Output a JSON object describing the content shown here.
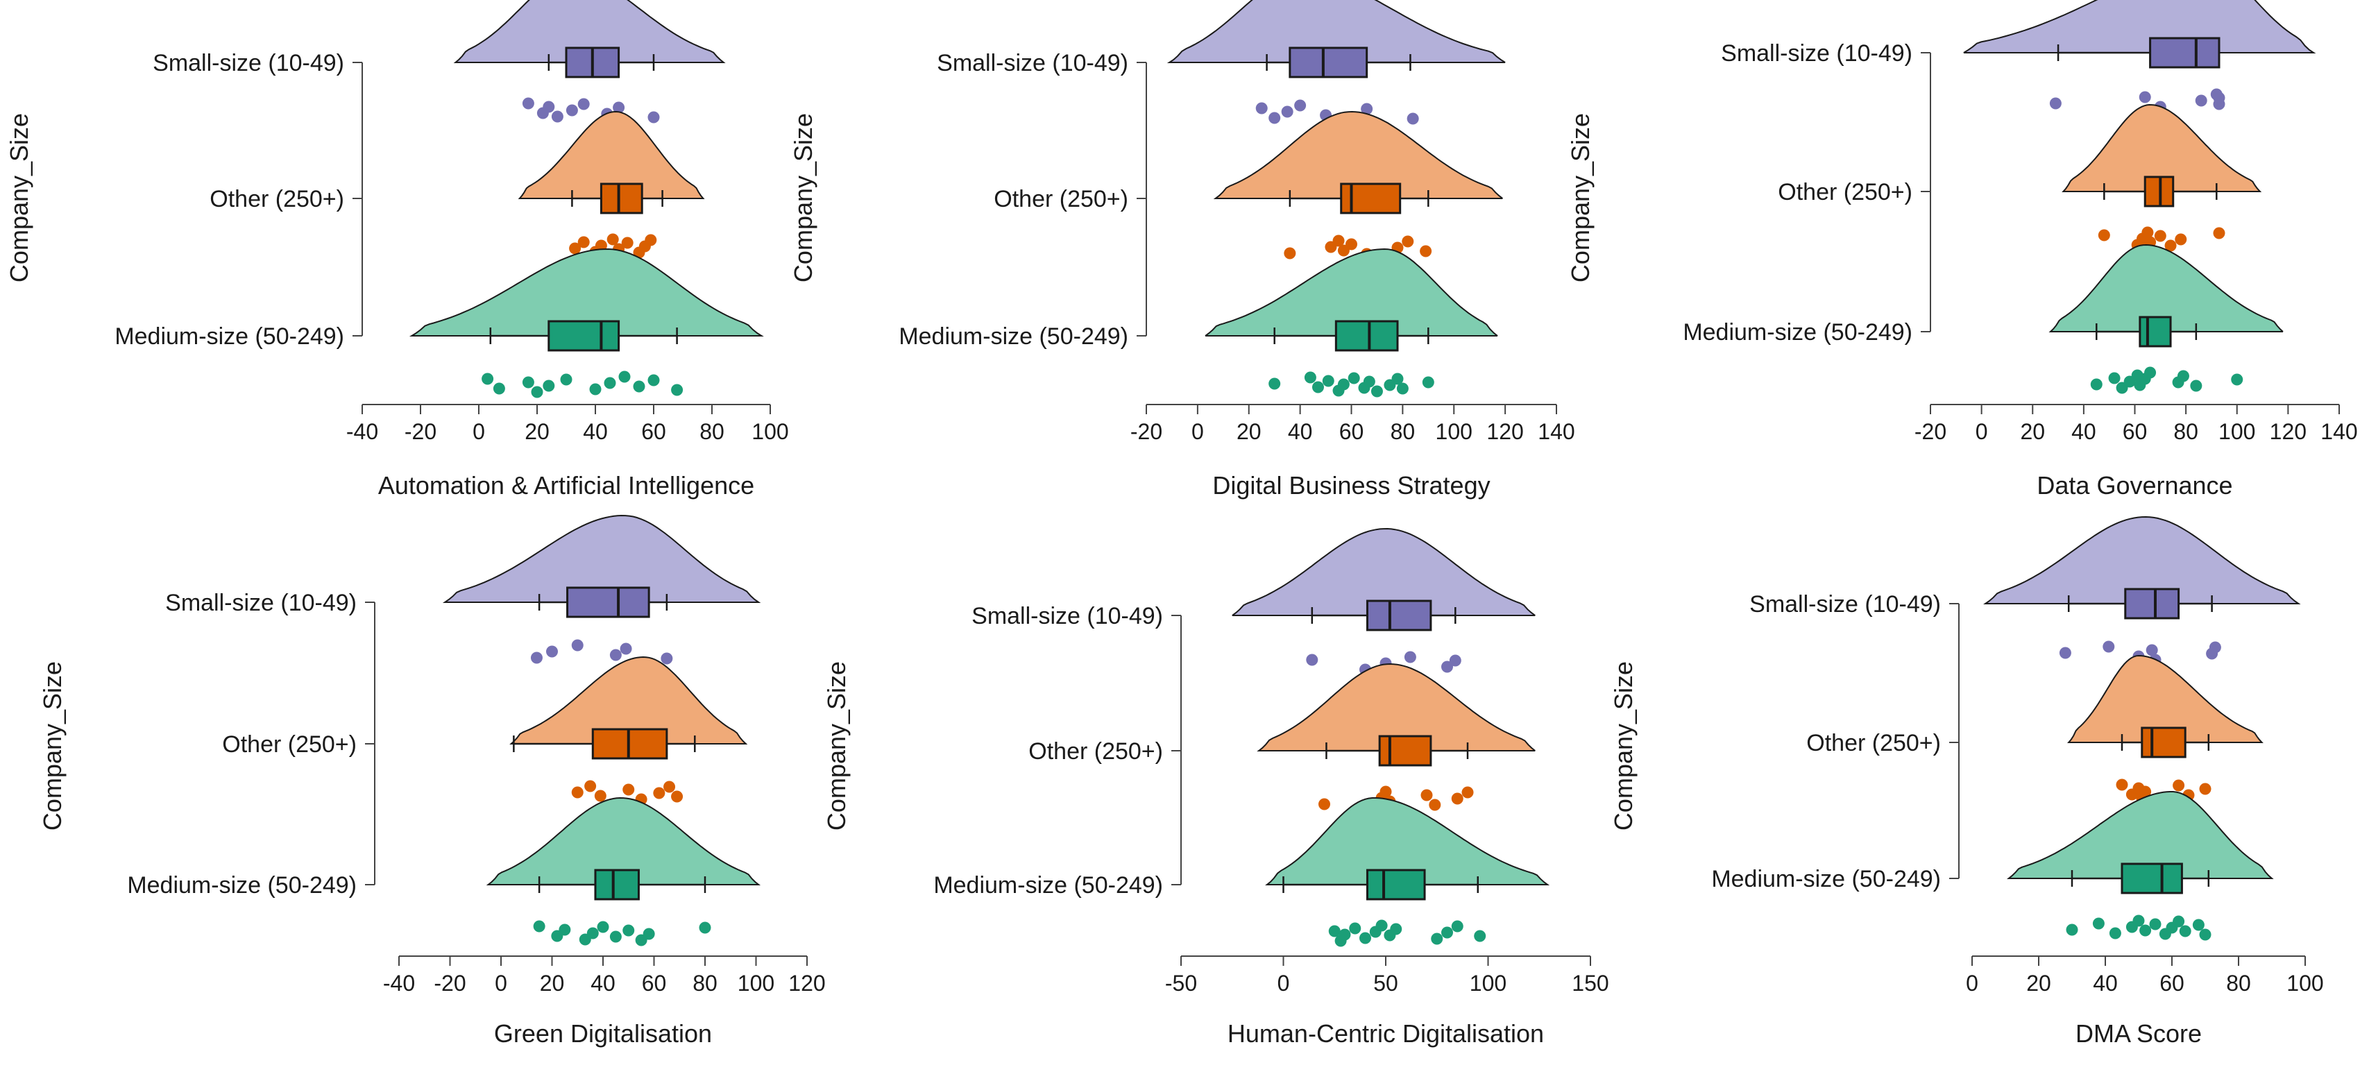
{
  "colors": {
    "small": "#7570b3",
    "other": "#d95f02",
    "medium": "#1b9e77",
    "small_fill": "#b3b0d9",
    "other_fill": "#f0aa78",
    "medium_fill": "#7fcdb0"
  },
  "chart_data": [
    {
      "type": "raincloud",
      "title": "",
      "xlabel": "Automation & Artificial Intelligence",
      "ylabel": "Company_Size",
      "xlim": [
        -40,
        100
      ],
      "xticks": [
        -40,
        -20,
        0,
        20,
        40,
        60,
        80,
        100
      ],
      "groups": [
        {
          "name": "Small-size (10-49)",
          "key": "small",
          "density_range": [
            -8,
            84
          ],
          "density_peak": 32,
          "box": {
            "whisker_low": 24,
            "q1": 30,
            "median": 39,
            "q3": 48,
            "whisker_high": 60
          },
          "points": [
            17,
            22,
            24,
            27,
            32,
            36,
            44,
            48,
            60
          ]
        },
        {
          "name": "Other (250+)",
          "key": "other",
          "density_range": [
            14,
            77
          ],
          "density_peak": 47,
          "box": {
            "whisker_low": 32,
            "q1": 42,
            "median": 48,
            "q3": 56,
            "whisker_high": 63
          },
          "points": [
            33,
            36,
            40,
            42,
            46,
            48,
            51,
            55,
            57,
            59
          ]
        },
        {
          "name": "Medium-size (50-249)",
          "key": "medium",
          "density_range": [
            -23,
            97
          ],
          "density_peak": 44,
          "box": {
            "whisker_low": 4,
            "q1": 24,
            "median": 42,
            "q3": 48,
            "whisker_high": 68
          },
          "points": [
            3,
            7,
            17,
            20,
            24,
            30,
            40,
            45,
            50,
            55,
            60,
            68
          ]
        }
      ]
    },
    {
      "type": "raincloud",
      "title": "",
      "xlabel": "Digital Business Strategy",
      "ylabel": "Company_Size",
      "xlim": [
        -20,
        140
      ],
      "xticks": [
        -20,
        0,
        20,
        40,
        60,
        80,
        100,
        120,
        140
      ],
      "groups": [
        {
          "name": "Small-size (10-49)",
          "key": "small",
          "density_range": [
            -11,
            120
          ],
          "density_peak": 40,
          "box": {
            "whisker_low": 27,
            "q1": 36,
            "median": 49,
            "q3": 66,
            "whisker_high": 83
          },
          "points": [
            25,
            30,
            35,
            40,
            50,
            66,
            84
          ]
        },
        {
          "name": "Other (250+)",
          "key": "other",
          "density_range": [
            7,
            119
          ],
          "density_peak": 60,
          "box": {
            "whisker_low": 36,
            "q1": 56,
            "median": 60,
            "q3": 79,
            "whisker_high": 90
          },
          "points": [
            36,
            52,
            55,
            57,
            60,
            66,
            78,
            82,
            89
          ]
        },
        {
          "name": "Medium-size (50-249)",
          "key": "medium",
          "density_range": [
            3,
            117
          ],
          "density_peak": 73,
          "box": {
            "whisker_low": 30,
            "q1": 54,
            "median": 67,
            "q3": 78,
            "whisker_high": 90
          },
          "points": [
            30,
            44,
            47,
            51,
            55,
            57,
            61,
            65,
            67,
            70,
            75,
            78,
            80,
            90
          ]
        }
      ]
    },
    {
      "type": "raincloud",
      "title": "",
      "xlabel": "Data Governance",
      "ylabel": "Company_Size",
      "xlim": [
        -20,
        140
      ],
      "xticks": [
        -20,
        0,
        20,
        40,
        60,
        80,
        100,
        120,
        140
      ],
      "groups": [
        {
          "name": "Small-size (10-49)",
          "key": "small",
          "density_range": [
            -7,
            130
          ],
          "density_peak": 88,
          "box": {
            "whisker_low": 30,
            "q1": 66,
            "median": 84,
            "q3": 93,
            "whisker_high": 93
          },
          "points": [
            29,
            64,
            70,
            86,
            92,
            93,
            93
          ]
        },
        {
          "name": "Other (250+)",
          "key": "other",
          "density_range": [
            32,
            109
          ],
          "density_peak": 66,
          "box": {
            "whisker_low": 48,
            "q1": 64,
            "median": 70,
            "q3": 75,
            "whisker_high": 92
          },
          "points": [
            48,
            61,
            63,
            65,
            66,
            70,
            74,
            78,
            93
          ]
        },
        {
          "name": "Medium-size (50-249)",
          "key": "medium",
          "density_range": [
            27,
            118
          ],
          "density_peak": 64,
          "box": {
            "whisker_low": 45,
            "q1": 62,
            "median": 65,
            "q3": 74,
            "whisker_high": 84
          },
          "points": [
            45,
            52,
            55,
            58,
            61,
            62,
            64,
            66,
            77,
            79,
            84,
            100
          ]
        }
      ]
    },
    {
      "type": "raincloud",
      "title": "",
      "xlabel": "Green Digitalisation",
      "ylabel": "Company_Size",
      "xlim": [
        -40,
        120
      ],
      "xticks": [
        -40,
        -20,
        0,
        20,
        40,
        60,
        80,
        100,
        120
      ],
      "groups": [
        {
          "name": "Small-size (10-49)",
          "key": "small",
          "density_range": [
            -22,
            101
          ],
          "density_peak": 48,
          "box": {
            "whisker_low": 15,
            "q1": 26,
            "median": 46,
            "q3": 58,
            "whisker_high": 65
          },
          "points": [
            14,
            20,
            30,
            45,
            49,
            65
          ]
        },
        {
          "name": "Other (250+)",
          "key": "other",
          "density_range": [
            4,
            96
          ],
          "density_peak": 56,
          "box": {
            "whisker_low": 5,
            "q1": 36,
            "median": 50,
            "q3": 65,
            "whisker_high": 76
          },
          "points": [
            30,
            35,
            39,
            50,
            55,
            62,
            66,
            69
          ]
        },
        {
          "name": "Medium-size (50-249)",
          "key": "medium",
          "density_range": [
            -5,
            101
          ],
          "density_peak": 47,
          "box": {
            "whisker_low": 15,
            "q1": 37,
            "median": 44,
            "q3": 54,
            "whisker_high": 80
          },
          "points": [
            15,
            22,
            25,
            33,
            36,
            40,
            45,
            50,
            55,
            58,
            80
          ]
        }
      ]
    },
    {
      "type": "raincloud",
      "title": "",
      "xlabel": "Human-Centric Digitalisation",
      "ylabel": "Company_Size",
      "xlim": [
        -50,
        150
      ],
      "xticks": [
        -50,
        0,
        50,
        100,
        150
      ],
      "groups": [
        {
          "name": "Small-size (10-49)",
          "key": "small",
          "density_range": [
            -25,
            123
          ],
          "density_peak": 50,
          "box": {
            "whisker_low": 14,
            "q1": 41,
            "median": 52,
            "q3": 72,
            "whisker_high": 84
          },
          "points": [
            14,
            40,
            50,
            62,
            80,
            84
          ]
        },
        {
          "name": "Other (250+)",
          "key": "other",
          "density_range": [
            -12,
            123
          ],
          "density_peak": 52,
          "box": {
            "whisker_low": 21,
            "q1": 47,
            "median": 52,
            "q3": 72,
            "whisker_high": 90
          },
          "points": [
            20,
            48,
            50,
            52,
            70,
            74,
            85,
            90
          ]
        },
        {
          "name": "Medium-size (50-249)",
          "key": "medium",
          "density_range": [
            -8,
            129
          ],
          "density_peak": 44,
          "box": {
            "whisker_low": 0,
            "q1": 41,
            "median": 49,
            "q3": 69,
            "whisker_high": 95
          },
          "points": [
            25,
            28,
            30,
            35,
            40,
            45,
            48,
            52,
            55,
            75,
            80,
            85,
            96
          ]
        }
      ]
    },
    {
      "type": "raincloud",
      "title": "",
      "xlabel": "DMA Score",
      "ylabel": "Company_Size",
      "xlim": [
        0,
        100
      ],
      "xticks": [
        0,
        20,
        40,
        60,
        80,
        100
      ],
      "groups": [
        {
          "name": "Small-size (10-49)",
          "key": "small",
          "density_range": [
            4,
            98
          ],
          "density_peak": 52,
          "box": {
            "whisker_low": 29,
            "q1": 46,
            "median": 55,
            "q3": 62,
            "whisker_high": 72
          },
          "points": [
            28,
            41,
            50,
            54,
            55,
            72,
            73
          ]
        },
        {
          "name": "Other (250+)",
          "key": "other",
          "density_range": [
            29,
            87
          ],
          "density_peak": 50,
          "box": {
            "whisker_low": 45,
            "q1": 51,
            "median": 54,
            "q3": 64,
            "whisker_high": 71
          },
          "points": [
            45,
            48,
            50,
            51,
            52,
            62,
            65,
            70
          ]
        },
        {
          "name": "Medium-size (50-249)",
          "key": "medium",
          "density_range": [
            11,
            90
          ],
          "density_peak": 60,
          "box": {
            "whisker_low": 30,
            "q1": 45,
            "median": 57,
            "q3": 63,
            "whisker_high": 71
          },
          "points": [
            30,
            38,
            43,
            48,
            50,
            52,
            55,
            58,
            60,
            62,
            64,
            68,
            70
          ]
        }
      ]
    }
  ]
}
